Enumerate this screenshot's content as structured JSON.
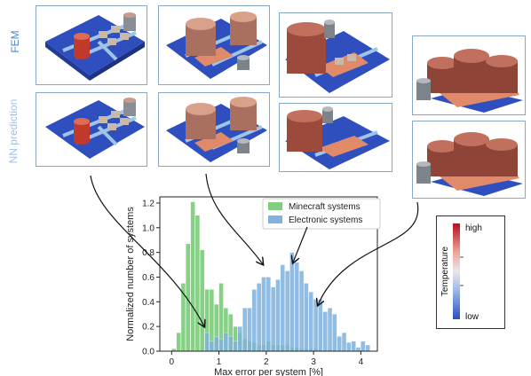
{
  "row_labels": {
    "fem": "FEM",
    "nn": "NN prediction"
  },
  "colors": {
    "fem_label": "#4f86c6",
    "nn_label": "#9fc0e6",
    "minecraft": "#7fcf7f",
    "electronic": "#7fb2dd",
    "overlap": "#3f9f8f",
    "board": "#2f4fbf",
    "hot": "#d9533f",
    "warm": "#c99b8a",
    "cool": "#9aa3ad"
  },
  "colorbar": {
    "title": "Temperature",
    "high": "high",
    "low": "low"
  },
  "chart_data": {
    "type": "bar",
    "title": "",
    "xlabel": "Max error per system [%]",
    "ylabel": "Normalized number of systems",
    "xlim": [
      -0.25,
      4.35
    ],
    "ylim": [
      0,
      1.25
    ],
    "xticks": [
      0,
      1,
      2,
      3,
      4
    ],
    "yticks": [
      0.0,
      0.2,
      0.4,
      0.6,
      0.8,
      1.0,
      1.2
    ],
    "bin_width": 0.1,
    "legend": "top-right",
    "series": [
      {
        "name": "Minecraft systems",
        "x": [
          0.0,
          0.1,
          0.2,
          0.3,
          0.4,
          0.5,
          0.6,
          0.7,
          0.8,
          0.9,
          1.0,
          1.1,
          1.2,
          1.3,
          1.4,
          1.5,
          1.6,
          1.7,
          1.8,
          1.9,
          2.0,
          2.1,
          2.2,
          2.3,
          2.4,
          2.5,
          2.6,
          2.7,
          2.8,
          2.9,
          3.0,
          3.1,
          3.2,
          3.3,
          3.4
        ],
        "values": [
          0.02,
          0.15,
          0.55,
          0.87,
          1.21,
          1.1,
          0.82,
          0.5,
          0.5,
          0.38,
          0.55,
          0.35,
          0.3,
          0.2,
          0.15,
          0.1,
          0.08,
          0.07,
          0.05,
          0.05,
          0.08,
          0.05,
          0.05,
          0.05,
          0.05,
          0.03,
          0.03,
          0.02,
          0.02,
          0.02,
          0.02,
          0.01,
          0.01,
          0.01,
          0.01
        ]
      },
      {
        "name": "Electronic systems",
        "x": [
          0.7,
          0.8,
          0.9,
          1.0,
          1.1,
          1.2,
          1.3,
          1.4,
          1.5,
          1.6,
          1.7,
          1.8,
          1.9,
          2.0,
          2.1,
          2.2,
          2.3,
          2.4,
          2.5,
          2.6,
          2.7,
          2.8,
          2.9,
          3.0,
          3.1,
          3.2,
          3.3,
          3.4,
          3.5,
          3.6,
          3.7,
          3.8,
          3.9,
          4.0,
          4.1
        ],
        "values": [
          0.15,
          0.08,
          0.12,
          0.1,
          0.15,
          0.12,
          0.08,
          0.2,
          0.35,
          0.35,
          0.5,
          0.55,
          0.6,
          0.6,
          0.52,
          0.58,
          0.7,
          0.65,
          0.8,
          0.72,
          0.65,
          0.55,
          0.48,
          0.42,
          0.42,
          0.32,
          0.35,
          0.3,
          0.12,
          0.15,
          0.07,
          0.08,
          0.03,
          0.08,
          0.05
        ]
      }
    ]
  }
}
